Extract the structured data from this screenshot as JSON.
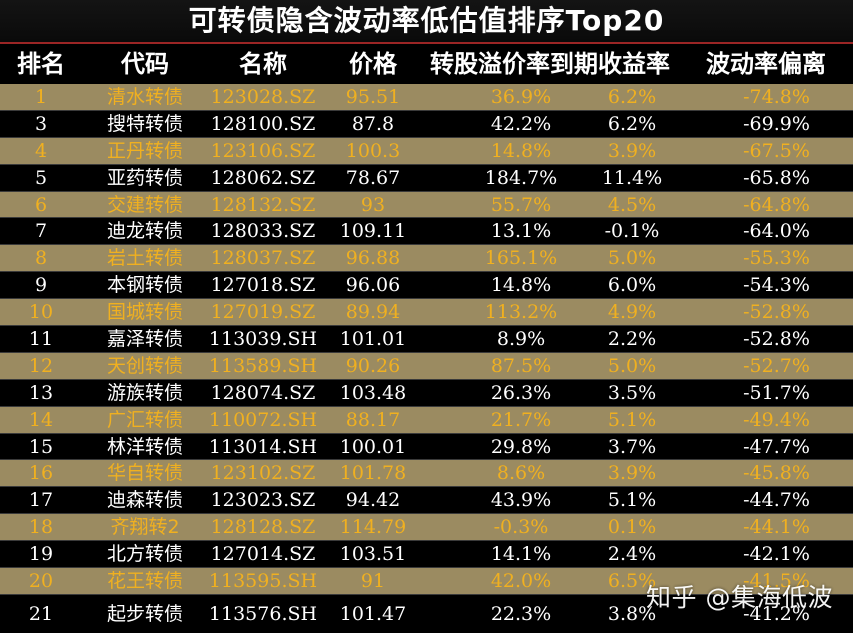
{
  "title": "可转债隐含波动率低估值排序Top20",
  "headers": {
    "rank": "排名",
    "name": "代码",
    "code": "名称",
    "price": "价格",
    "premium": "转股溢价率到期收益率",
    "vol": "波动率偏离"
  },
  "rows": [
    {
      "rank": "1",
      "name": "清水转债",
      "code": "123028.SZ",
      "price": "95.51",
      "premium": "36.9%",
      "ytm": "6.2%",
      "vol": "-74.8%"
    },
    {
      "rank": "3",
      "name": "搜特转债",
      "code": "128100.SZ",
      "price": "87.8",
      "premium": "42.2%",
      "ytm": "6.2%",
      "vol": "-69.9%"
    },
    {
      "rank": "4",
      "name": "正丹转债",
      "code": "123106.SZ",
      "price": "100.3",
      "premium": "14.8%",
      "ytm": "3.9%",
      "vol": "-67.5%"
    },
    {
      "rank": "5",
      "name": "亚药转债",
      "code": "128062.SZ",
      "price": "78.67",
      "premium": "184.7%",
      "ytm": "11.4%",
      "vol": "-65.8%"
    },
    {
      "rank": "6",
      "name": "交建转债",
      "code": "128132.SZ",
      "price": "93",
      "premium": "55.7%",
      "ytm": "4.5%",
      "vol": "-64.8%"
    },
    {
      "rank": "7",
      "name": "迪龙转债",
      "code": "128033.SZ",
      "price": "109.11",
      "premium": "13.1%",
      "ytm": "-0.1%",
      "vol": "-64.0%"
    },
    {
      "rank": "8",
      "name": "岩土转债",
      "code": "128037.SZ",
      "price": "96.88",
      "premium": "165.1%",
      "ytm": "5.0%",
      "vol": "-55.3%"
    },
    {
      "rank": "9",
      "name": "本钢转债",
      "code": "127018.SZ",
      "price": "96.06",
      "premium": "14.8%",
      "ytm": "6.0%",
      "vol": "-54.3%"
    },
    {
      "rank": "10",
      "name": "国城转债",
      "code": "127019.SZ",
      "price": "89.94",
      "premium": "113.2%",
      "ytm": "4.9%",
      "vol": "-52.8%"
    },
    {
      "rank": "11",
      "name": "嘉泽转债",
      "code": "113039.SH",
      "price": "101.01",
      "premium": "8.9%",
      "ytm": "2.2%",
      "vol": "-52.8%"
    },
    {
      "rank": "12",
      "name": "天创转债",
      "code": "113589.SH",
      "price": "90.26",
      "premium": "87.5%",
      "ytm": "5.0%",
      "vol": "-52.7%"
    },
    {
      "rank": "13",
      "name": "游族转债",
      "code": "128074.SZ",
      "price": "103.48",
      "premium": "26.3%",
      "ytm": "3.5%",
      "vol": "-51.7%"
    },
    {
      "rank": "14",
      "name": "广汇转债",
      "code": "110072.SH",
      "price": "88.17",
      "premium": "21.7%",
      "ytm": "5.1%",
      "vol": "-49.4%"
    },
    {
      "rank": "15",
      "name": "林洋转债",
      "code": "113014.SH",
      "price": "100.01",
      "premium": "29.8%",
      "ytm": "3.7%",
      "vol": "-47.7%"
    },
    {
      "rank": "16",
      "name": "华自转债",
      "code": "123102.SZ",
      "price": "101.78",
      "premium": "8.6%",
      "ytm": "3.9%",
      "vol": "-45.8%"
    },
    {
      "rank": "17",
      "name": "迪森转债",
      "code": "123023.SZ",
      "price": "94.42",
      "premium": "43.9%",
      "ytm": "5.1%",
      "vol": "-44.7%"
    },
    {
      "rank": "18",
      "name": "齐翔转2",
      "code": "128128.SZ",
      "price": "114.79",
      "premium": "-0.3%",
      "ytm": "0.1%",
      "vol": "-44.1%"
    },
    {
      "rank": "19",
      "name": "北方转债",
      "code": "127014.SZ",
      "price": "103.51",
      "premium": "14.1%",
      "ytm": "2.4%",
      "vol": "-42.1%"
    },
    {
      "rank": "20",
      "name": "花王转债",
      "code": "113595.SH",
      "price": "91",
      "premium": "42.0%",
      "ytm": "6.5%",
      "vol": "-41.5%"
    },
    {
      "rank": "21",
      "name": "起步转债",
      "code": "113576.SH",
      "price": "101.47",
      "premium": "22.3%",
      "ytm": "3.8%",
      "vol": "-41.2%"
    }
  ],
  "watermark": "知乎 @集海低波",
  "colors": {
    "odd_row_bg": "#9b8b61",
    "odd_row_text": "#f0b020",
    "even_row_bg": "#000000",
    "even_row_text": "#ffffff",
    "divider": "#9b2525"
  }
}
